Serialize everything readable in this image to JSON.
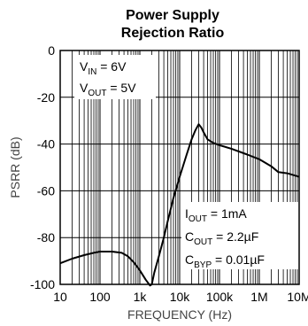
{
  "chart_data": {
    "type": "line",
    "title": "Power Supply",
    "subtitle": "Rejection Ratio",
    "xlabel": "FREQUENCY (Hz)",
    "ylabel": "PSRR (dB)",
    "x_scale": "log",
    "xlim": [
      10,
      10000000
    ],
    "ylim": [
      -100,
      0
    ],
    "x_tick_labels": [
      "10",
      "100",
      "1k",
      "10k",
      "100k",
      "1M",
      "10M"
    ],
    "y_tick_labels": [
      "0",
      "-20",
      "-40",
      "-60",
      "-80",
      "-100"
    ],
    "grid": true,
    "series": [
      {
        "color": "#000000",
        "x": [
          10,
          20,
          40,
          70,
          100,
          200,
          350,
          500,
          700,
          1000,
          1400,
          1800,
          2000,
          2300,
          3000,
          4000,
          5000,
          7000,
          10000,
          15000,
          20000,
          25000,
          30000,
          35000,
          40000,
          50000,
          70000,
          100000,
          200000,
          500000,
          1000000,
          2000000,
          3000000,
          5000000,
          10000000
        ],
        "y": [
          -91,
          -89,
          -87.5,
          -86.5,
          -86,
          -86,
          -86.5,
          -88,
          -90.5,
          -94,
          -98,
          -100.5,
          -100,
          -95,
          -88,
          -80,
          -73,
          -63,
          -54,
          -44.5,
          -38,
          -34,
          -31.5,
          -33,
          -35,
          -38,
          -39.5,
          -40.5,
          -42,
          -44.5,
          -46.5,
          -49.5,
          -52,
          -52.5,
          -54
        ]
      }
    ],
    "annotations": [
      {
        "main": "V",
        "sub": "IN",
        "rest": " = 6V"
      },
      {
        "main": "V",
        "sub": "OUT",
        "rest": " = 5V"
      },
      {
        "main": "I",
        "sub": "OUT",
        "rest": " = 1mA"
      },
      {
        "main": "C",
        "sub": "OUT",
        "rest": " = 2.2µF"
      },
      {
        "main": "C",
        "sub": "BYP",
        "rest": " = 0.01µF"
      }
    ]
  }
}
